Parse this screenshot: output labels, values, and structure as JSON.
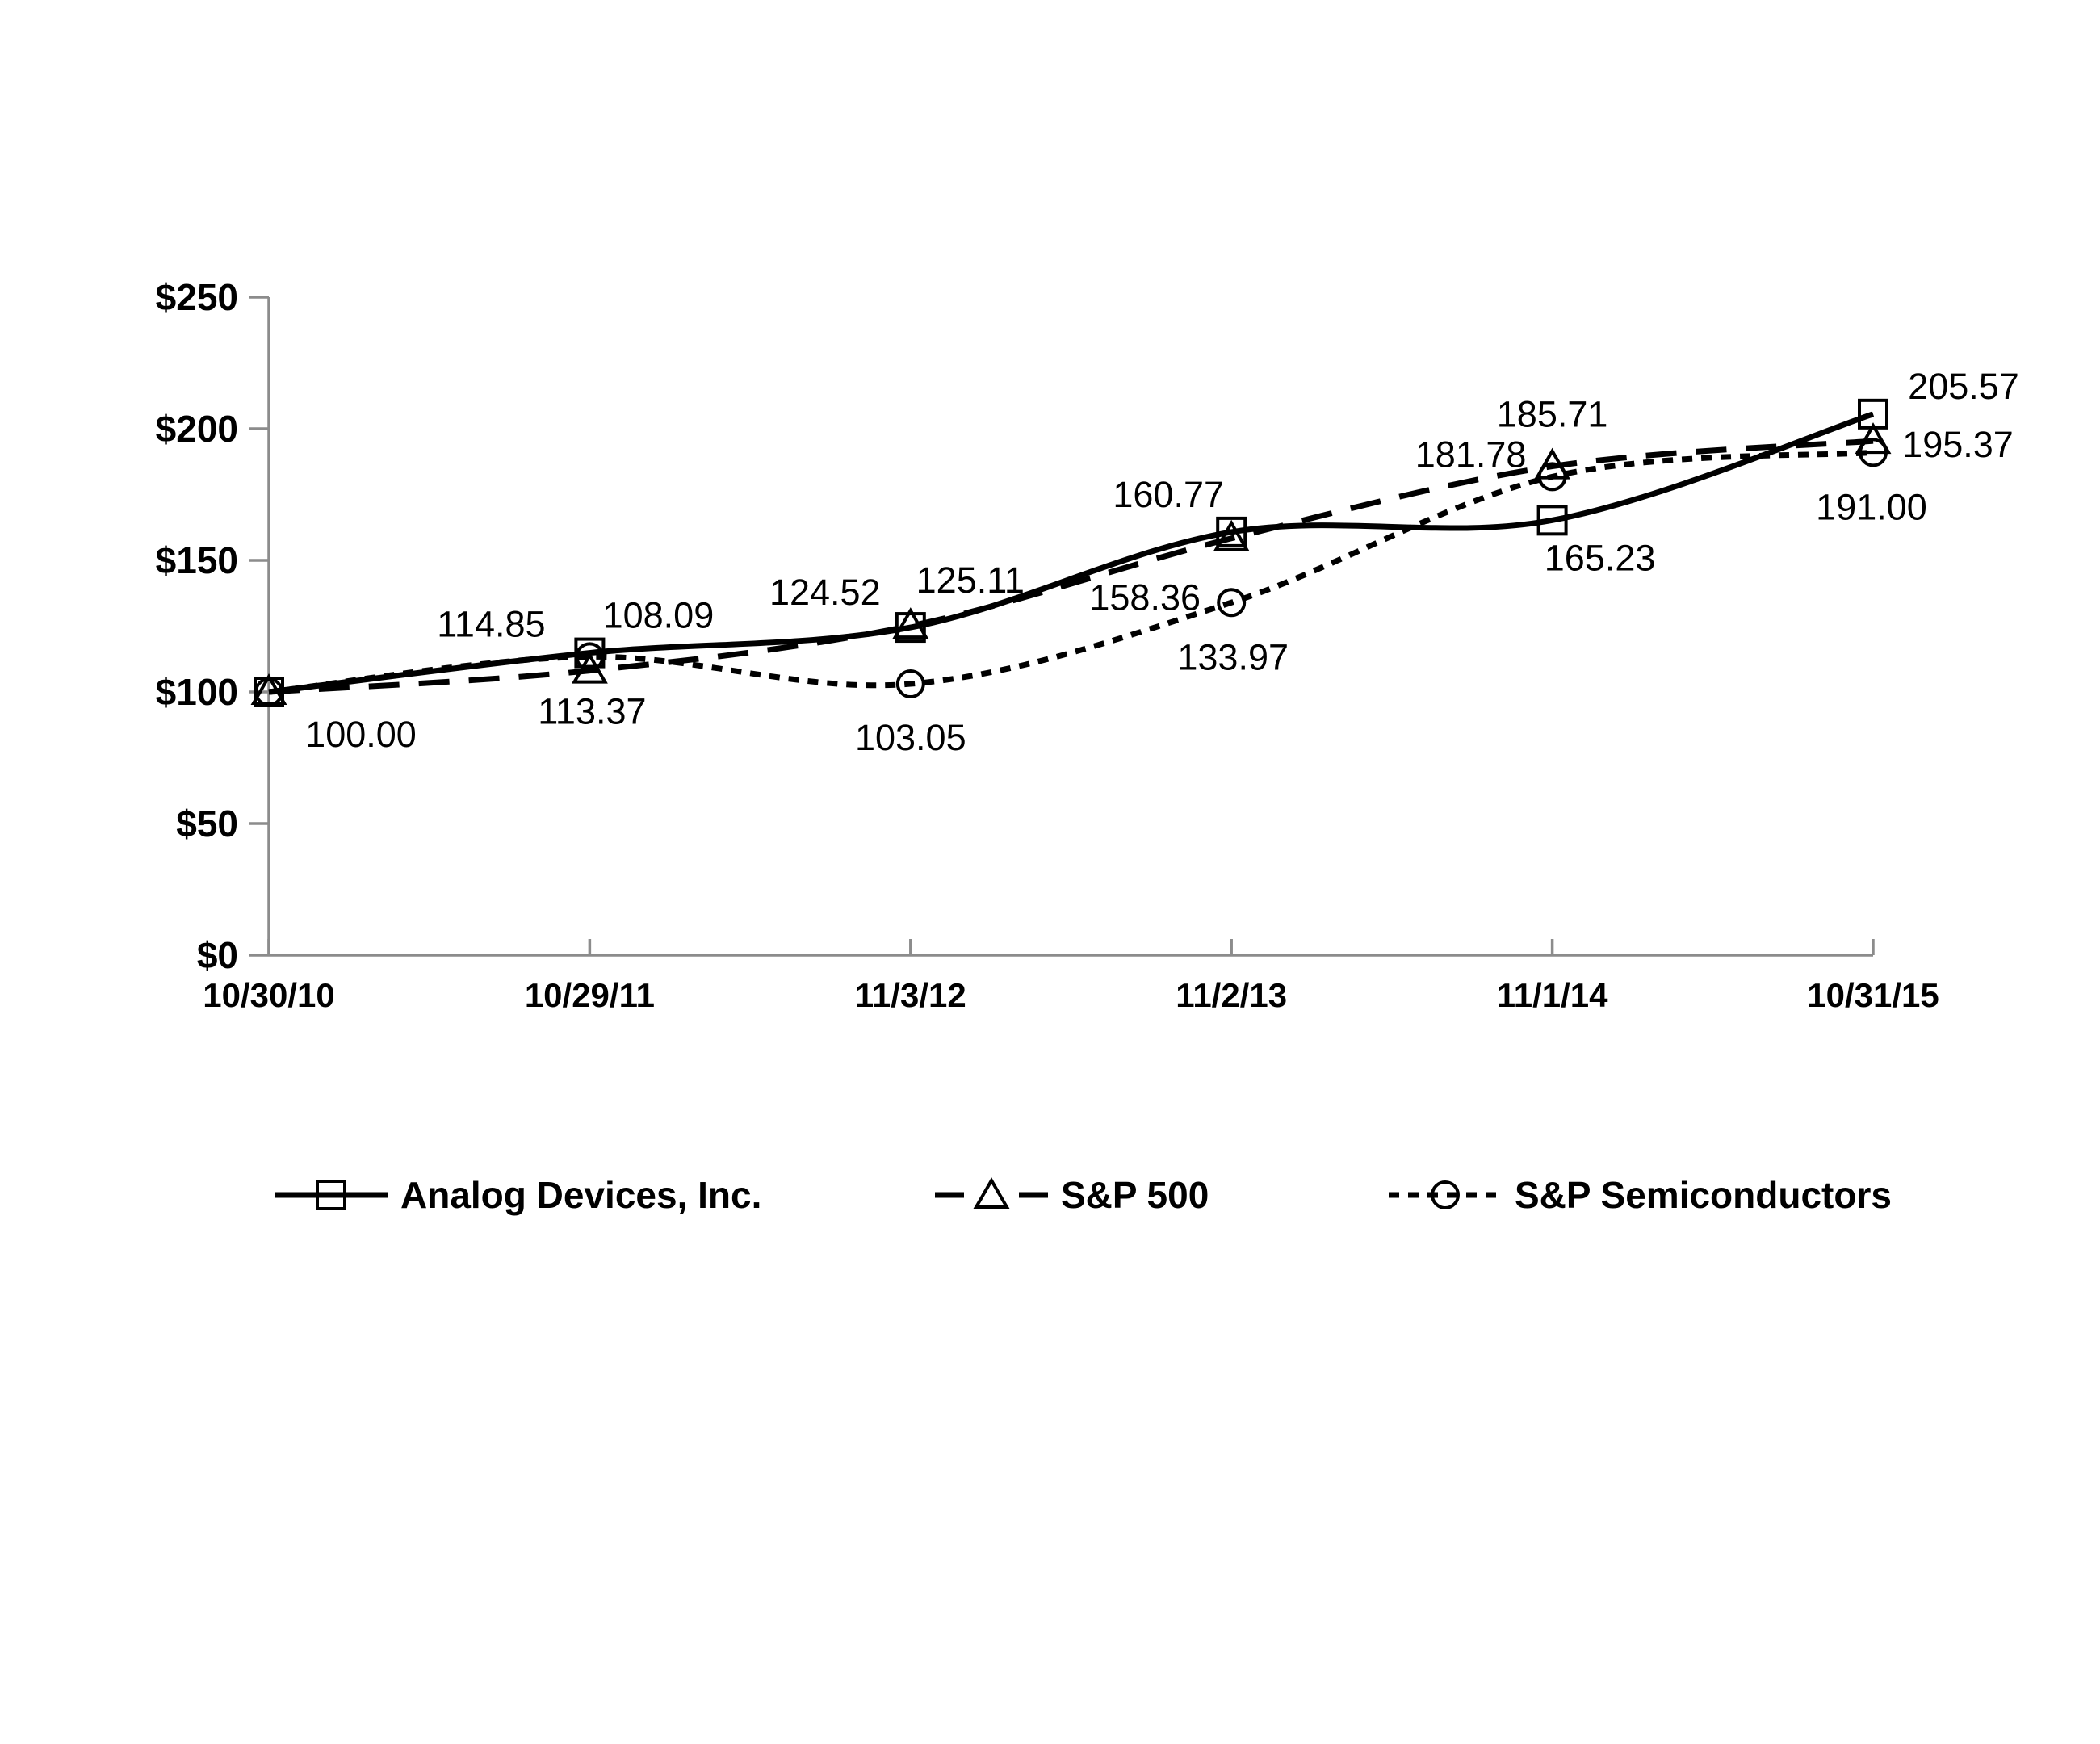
{
  "chart_data": {
    "type": "line",
    "title": "",
    "x_categories": [
      "10/30/10",
      "10/29/11",
      "11/3/12",
      "11/2/13",
      "11/1/14",
      "10/31/15"
    ],
    "y_ticks": [
      "$0",
      "$50",
      "$100",
      "$150",
      "$200",
      "$250"
    ],
    "ylim": [
      0,
      250
    ],
    "y_tick_interval": 50,
    "grid": "off",
    "legend_position": "bottom",
    "series": [
      {
        "id": "analog-devices",
        "name": "Analog Devices, Inc.",
        "line_style": "solid",
        "marker": "square",
        "values": [
          100.0,
          114.85,
          124.52,
          160.77,
          165.23,
          205.57
        ],
        "labels": [
          "100.00",
          "114.85",
          "124.52",
          "160.77",
          "165.23",
          "205.57"
        ]
      },
      {
        "id": "sp500",
        "name": "S&P 500",
        "line_style": "long-dash",
        "marker": "triangle",
        "values": [
          100.0,
          108.09,
          125.11,
          158.36,
          185.71,
          195.37
        ],
        "labels": [
          null,
          "108.09",
          "125.11",
          "158.36",
          "185.71",
          "195.37"
        ]
      },
      {
        "id": "sp-semiconductors",
        "name": "S&P Semiconductors",
        "line_style": "short-dash",
        "marker": "circle",
        "values": [
          100.0,
          113.37,
          103.05,
          133.97,
          181.78,
          191.0
        ],
        "labels": [
          null,
          "113.37",
          "103.05",
          "133.97",
          "181.78",
          "191.00"
        ]
      }
    ]
  },
  "colors": {
    "series": "#000000",
    "axis": "#8C8C8C",
    "text": "#000000",
    "background": "#ffffff"
  }
}
